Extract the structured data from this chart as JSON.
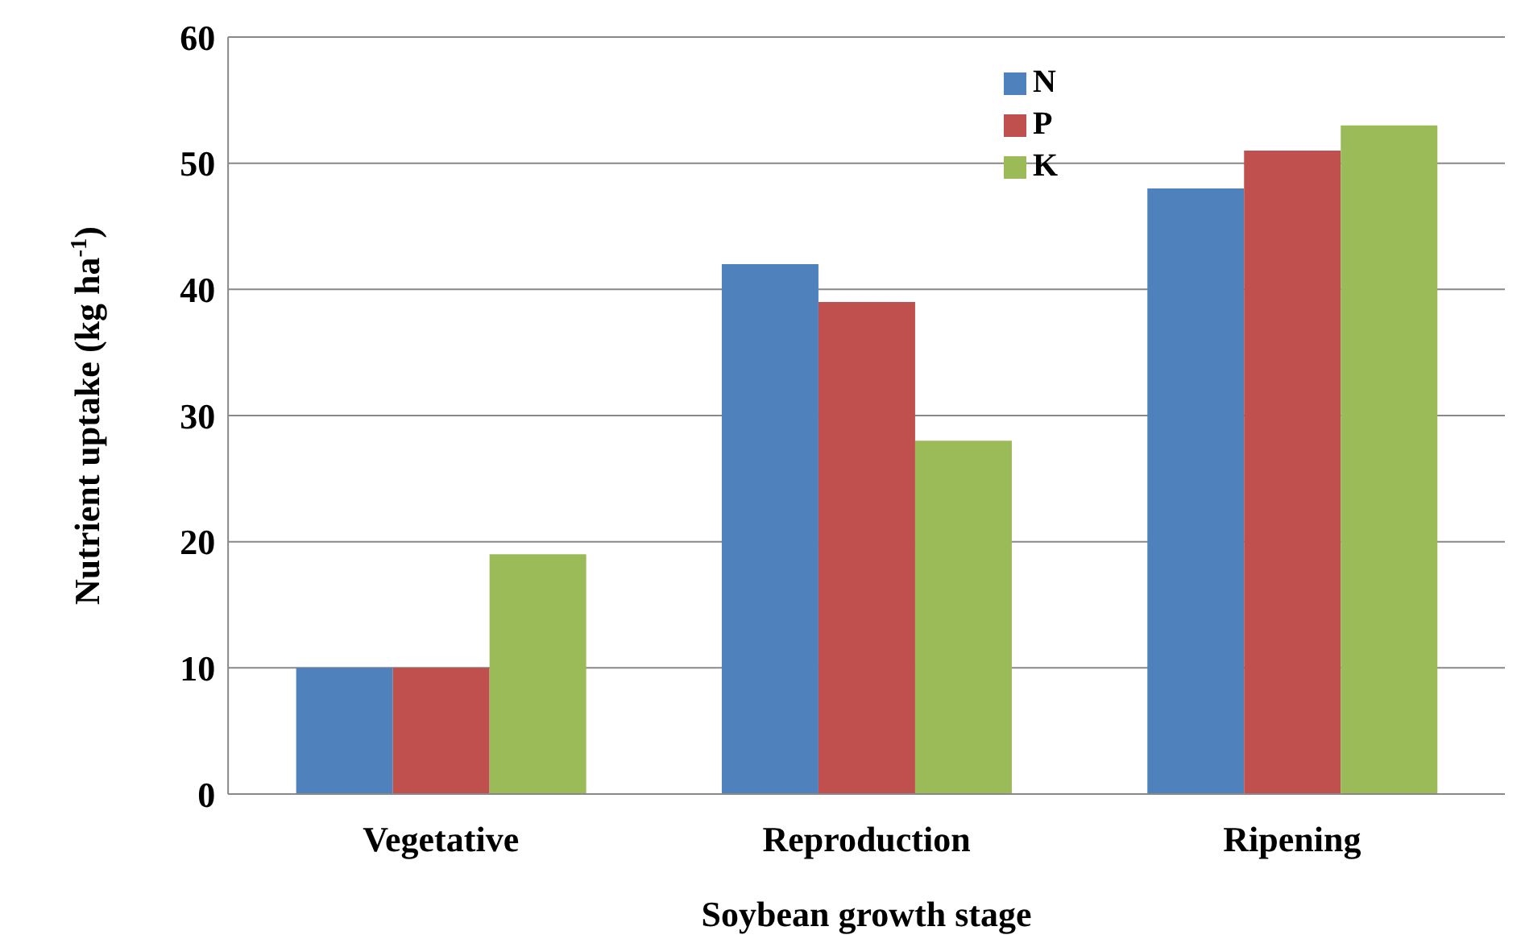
{
  "chart_data": {
    "type": "bar",
    "xlabel": "Soybean growth stage",
    "ylabel": "Nutrient uptake (kg ha$^{-1}$)",
    "categories": [
      "Vegetative",
      "Reproduction",
      "Ripening"
    ],
    "series": [
      {
        "name": "N",
        "color": "#4f81bd",
        "values": [
          10,
          42,
          48
        ]
      },
      {
        "name": "P",
        "color": "#c0504d",
        "values": [
          10,
          39,
          51
        ]
      },
      {
        "name": "K",
        "color": "#9bbb59",
        "values": [
          19,
          28,
          53
        ]
      }
    ],
    "ylim": [
      0,
      60
    ],
    "yticks": [
      0,
      10,
      20,
      30,
      40,
      50,
      60
    ],
    "grid": "y",
    "legend": "top right"
  }
}
